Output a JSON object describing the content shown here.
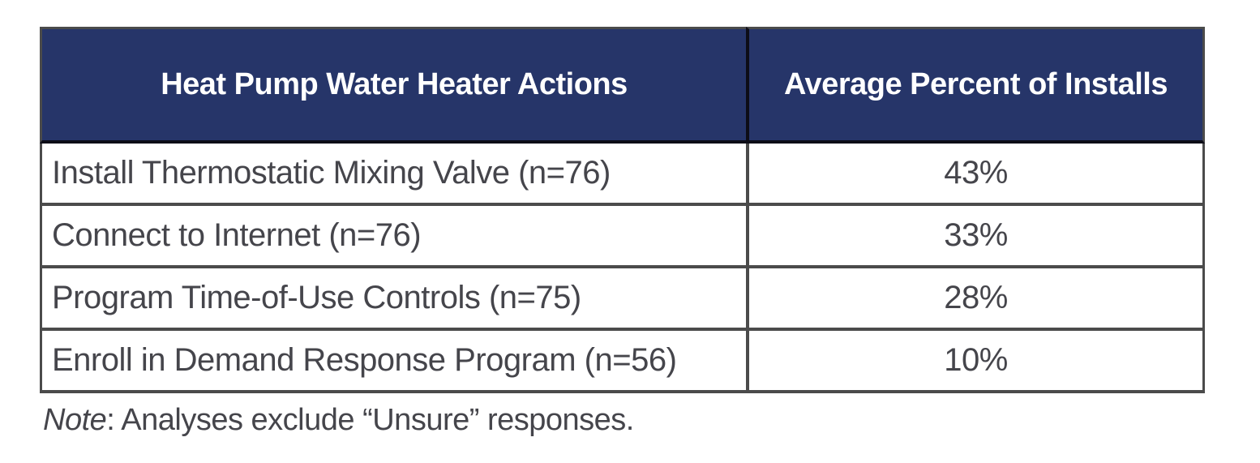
{
  "chart_data": {
    "type": "table",
    "columns": [
      "Heat Pump Water Heater Actions",
      "Average Percent of Installs"
    ],
    "rows": [
      [
        "Install Thermostatic Mixing Valve (n=76)",
        "43%"
      ],
      [
        "Connect to Internet (n=76)",
        "33%"
      ],
      [
        "Program Time-of-Use Controls (n=75)",
        "28%"
      ],
      [
        "Enroll in Demand Response Program (n=56)",
        "10%"
      ]
    ],
    "values_percent": [
      43,
      33,
      28,
      10
    ],
    "sample_sizes": [
      76,
      76,
      75,
      56
    ],
    "note_prefix": "Note",
    "note_rest": ": Analyses exclude “Unsure” responses."
  },
  "colors": {
    "header_bg": "#263569",
    "header_text": "#ffffff",
    "body_text": "#45454b",
    "grid_border": "#4b4b4b",
    "header_divider": "#0d0d17",
    "page_bg": "#ffffff"
  }
}
